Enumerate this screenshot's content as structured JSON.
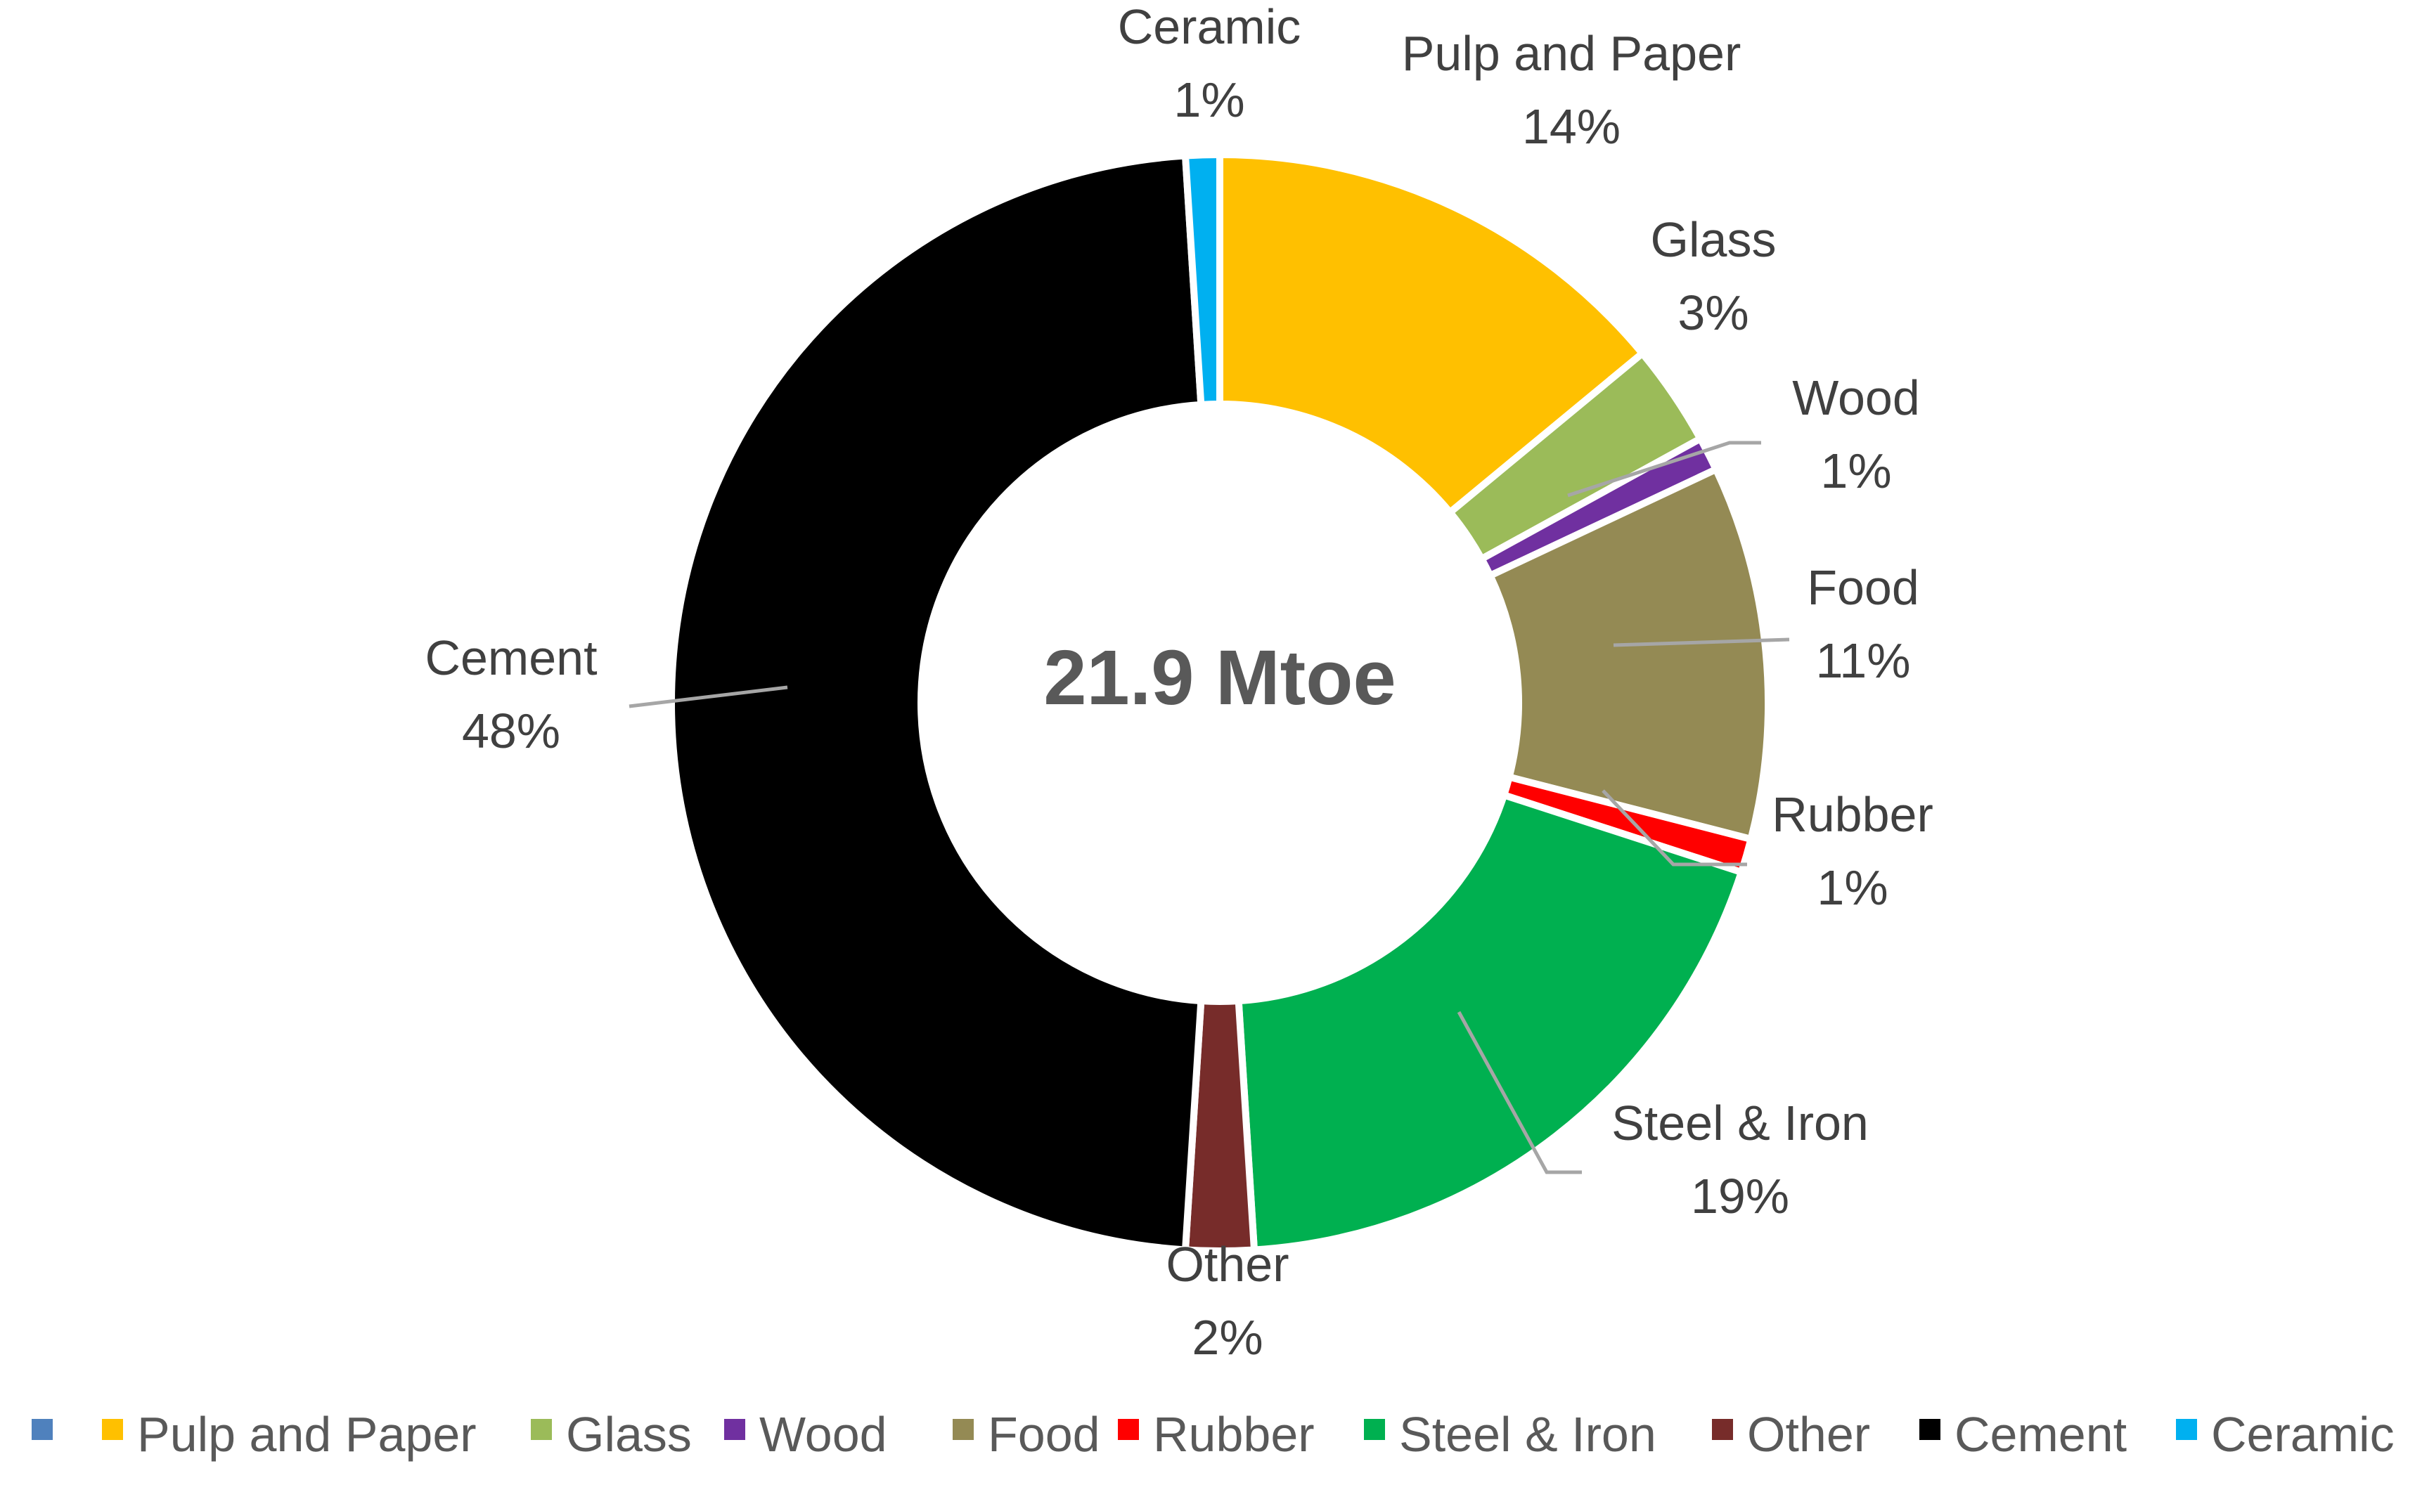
{
  "chart_data": {
    "type": "pie",
    "style": "donut",
    "center_label": "21.9 Mtoe",
    "title": "",
    "slices": [
      {
        "name": "Pulp and Paper",
        "value": 14,
        "label": "14%",
        "color": "#FFC000"
      },
      {
        "name": "Glass",
        "value": 3,
        "label": "3%",
        "color": "#9BBB59"
      },
      {
        "name": "Wood",
        "value": 1,
        "label": "1%",
        "color": "#7030A0"
      },
      {
        "name": "Food",
        "value": 11,
        "label": "11%",
        "color": "#948A54"
      },
      {
        "name": "Rubber",
        "value": 1,
        "label": "1%",
        "color": "#FF0000"
      },
      {
        "name": "Steel & Iron",
        "value": 19,
        "label": "19%",
        "color": "#00B050"
      },
      {
        "name": "Other",
        "value": 2,
        "label": "2%",
        "color": "#772C2A"
      },
      {
        "name": "Cement",
        "value": 48,
        "label": "48%",
        "color": "#000000"
      },
      {
        "name": "Ceramic",
        "value": 1,
        "label": "1%",
        "color": "#00B0F0"
      }
    ],
    "legend": {
      "position": "bottom",
      "entries": [
        {
          "name": "",
          "color": "#4F81BD"
        },
        {
          "name": "Pulp and Paper",
          "color": "#FFC000"
        },
        {
          "name": "Glass",
          "color": "#9BBB59"
        },
        {
          "name": "Wood",
          "color": "#7030A0"
        },
        {
          "name": "Food",
          "color": "#948A54"
        },
        {
          "name": "Rubber",
          "color": "#FF0000"
        },
        {
          "name": "Steel & Iron",
          "color": "#00B050"
        },
        {
          "name": "Other",
          "color": "#772C2A"
        },
        {
          "name": "Cement",
          "color": "#000000"
        },
        {
          "name": "Ceramic",
          "color": "#00B0F0"
        }
      ]
    }
  }
}
